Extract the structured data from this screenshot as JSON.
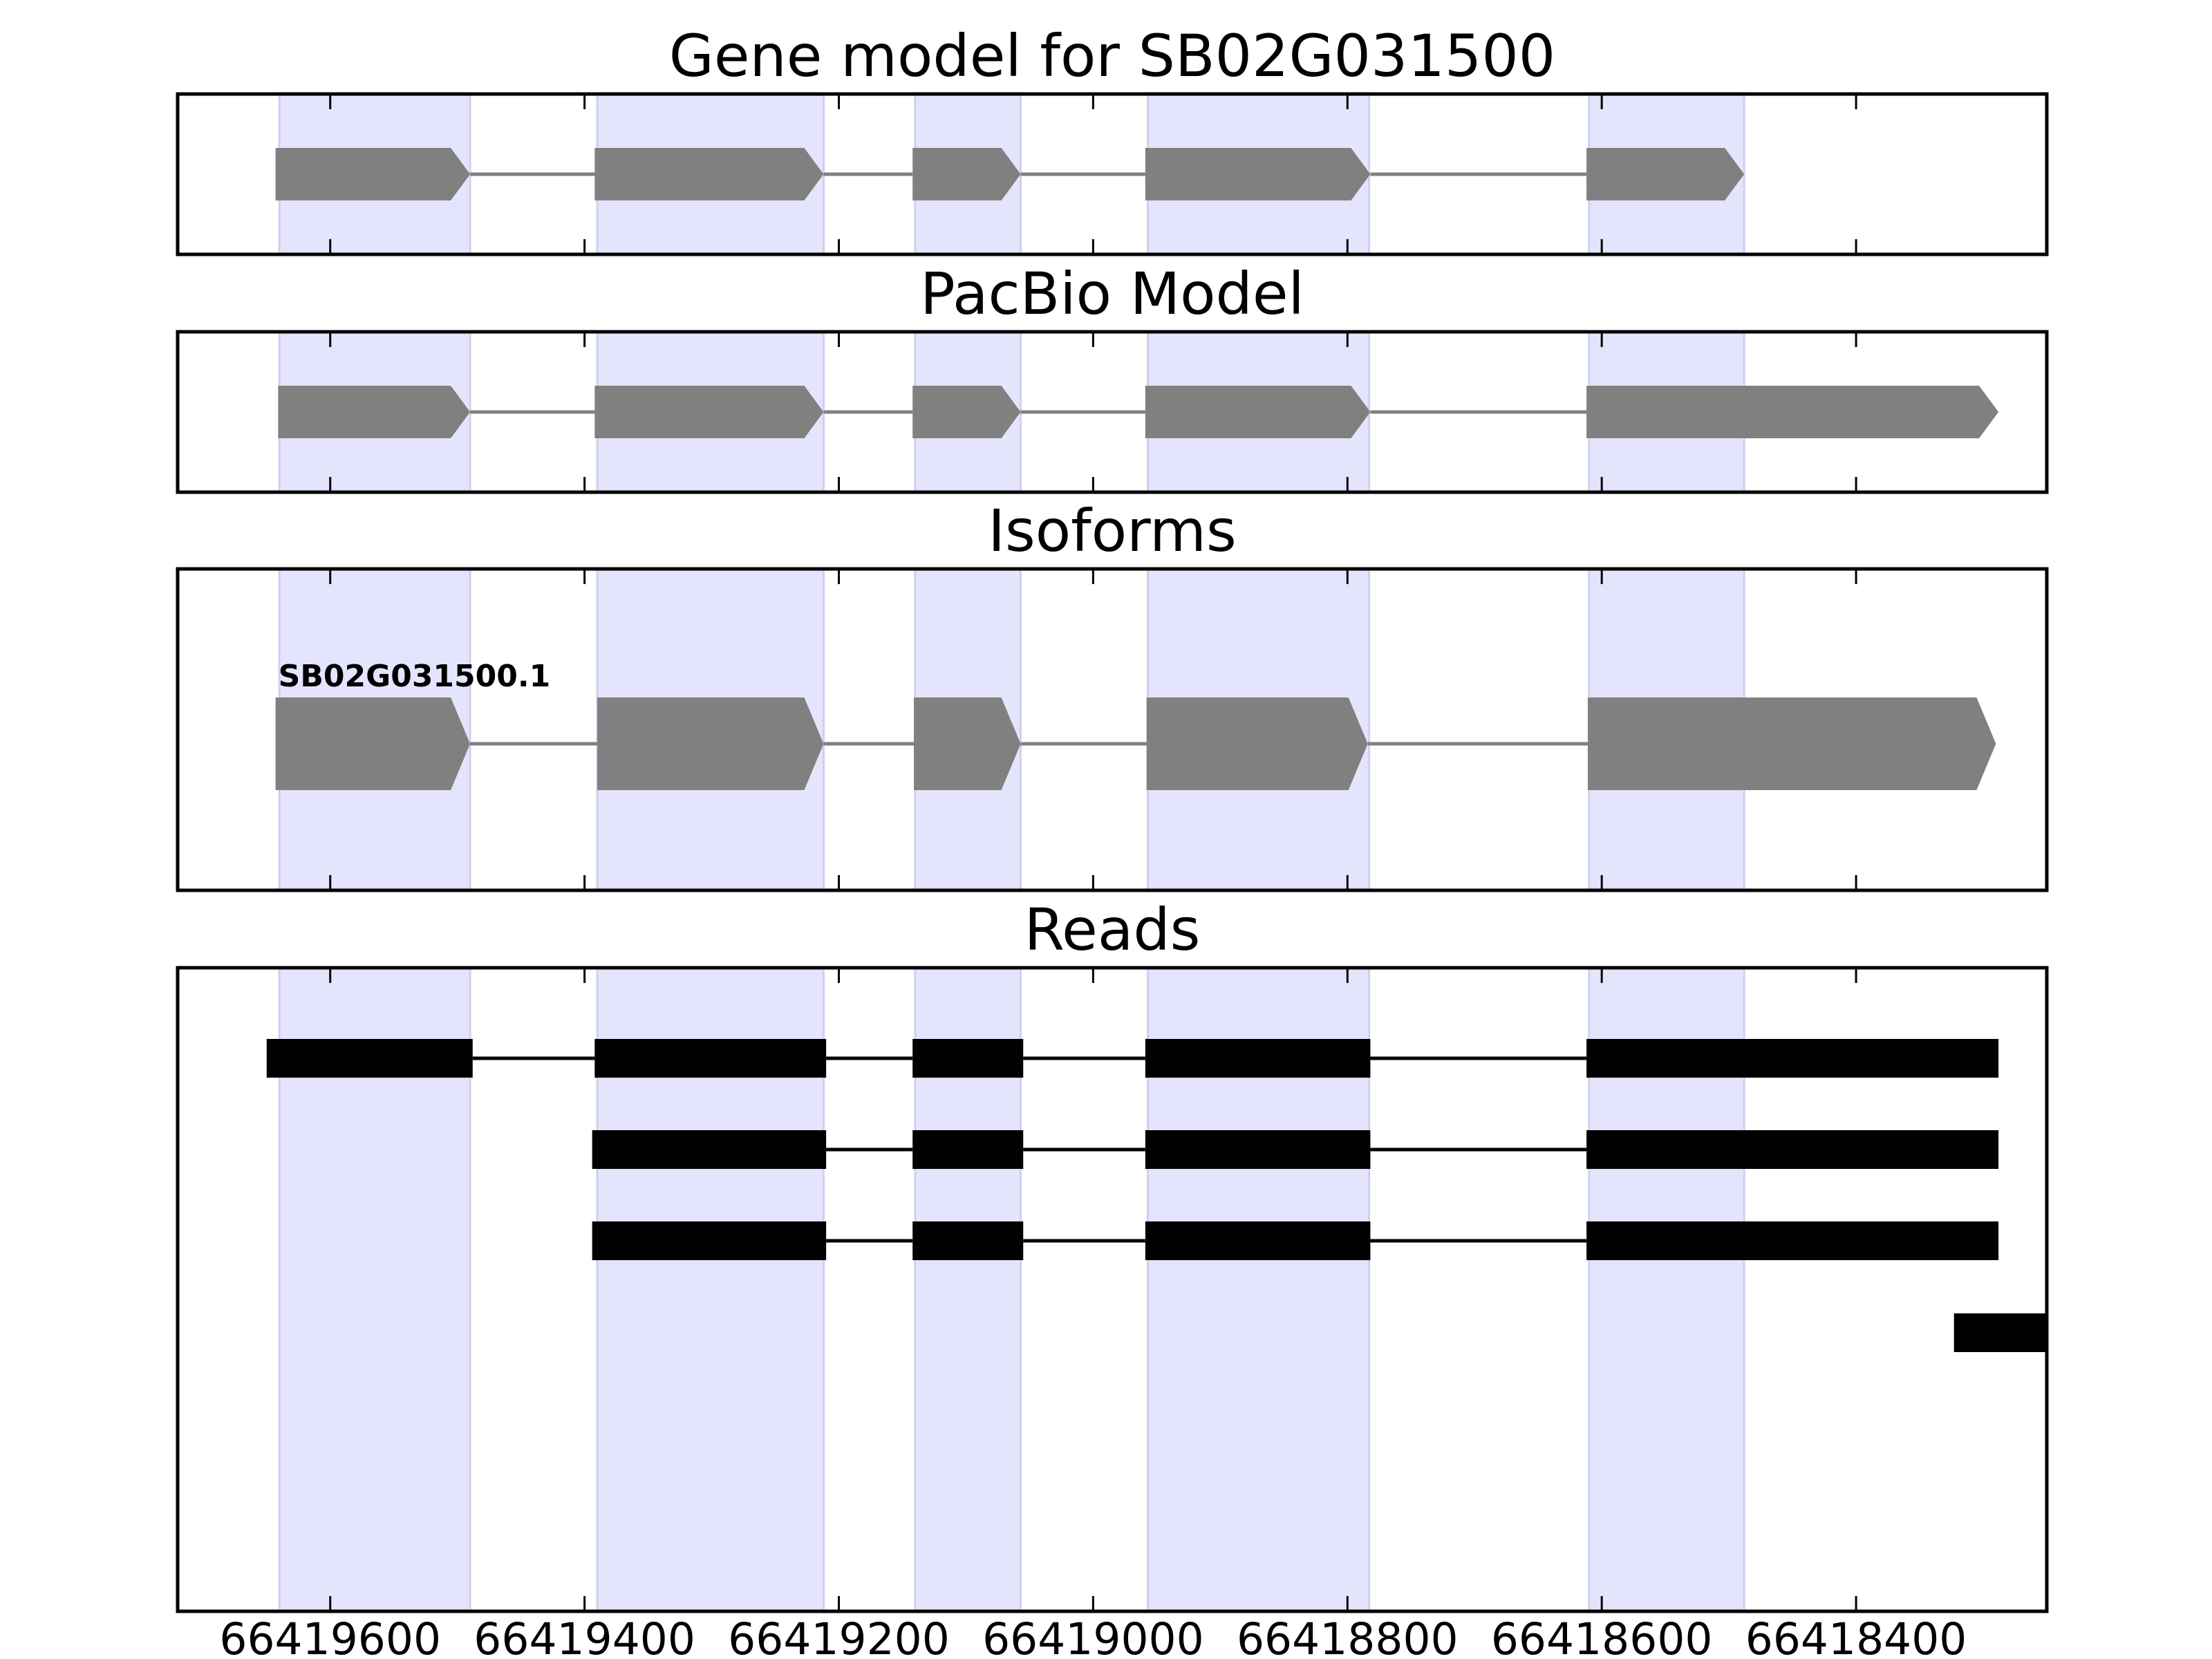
{
  "figure": {
    "x_tick_values": [
      66419600,
      66419400,
      66419200,
      66419000,
      66418800,
      66418600,
      66418400
    ],
    "x_tick_labels": [
      "66419600",
      "66419400",
      "66419200",
      "66419000",
      "66418800",
      "66418600",
      "66418400"
    ],
    "colors": {
      "exon_highlight": "#e4e4fc",
      "highlight_edge": "#cfd0ef",
      "gene_feature": "#808080",
      "read": "#000000",
      "frame": "#000000"
    }
  },
  "exon_regions": [
    [
      66419640,
      66419490
    ],
    [
      66419390,
      66419212
    ],
    [
      66419140,
      66419057
    ],
    [
      66418957,
      66418783
    ],
    [
      66418610,
      66418488
    ]
  ],
  "panels": [
    {
      "title": "Gene model for SB02G031500",
      "features": [
        {
          "exons": [
            [
              66419643,
              66419490
            ],
            [
              66419392,
              66419212
            ],
            [
              66419142,
              66419057
            ],
            [
              66418959,
              66418782
            ],
            [
              66418612,
              66418488
            ]
          ]
        }
      ]
    },
    {
      "title": "PacBio Model",
      "features": [
        {
          "exons": [
            [
              66419641,
              66419490
            ],
            [
              66419392,
              66419212
            ],
            [
              66419142,
              66419057
            ],
            [
              66418959,
              66418782
            ],
            [
              66418612,
              66418288
            ]
          ]
        }
      ]
    },
    {
      "title": "Isoforms",
      "features": [
        {
          "label": "SB02G031500.1",
          "exons": [
            [
              66419643,
              66419490
            ],
            [
              66419390,
              66419212
            ],
            [
              66419141,
              66419057
            ],
            [
              66418958,
              66418784
            ],
            [
              66418611,
              66418290
            ]
          ]
        }
      ]
    },
    {
      "title": "Reads",
      "features": [
        {
          "exons": [
            [
              66419650,
              66419488
            ],
            [
              66419392,
              66419210
            ],
            [
              66419142,
              66419055
            ],
            [
              66418959,
              66418782
            ],
            [
              66418612,
              66418288
            ]
          ]
        },
        {
          "exons": [
            [
              66419394,
              66419210
            ],
            [
              66419142,
              66419055
            ],
            [
              66418959,
              66418782
            ],
            [
              66418612,
              66418288
            ]
          ]
        },
        {
          "exons": [
            [
              66419394,
              66419210
            ],
            [
              66419142,
              66419055
            ],
            [
              66418959,
              66418782
            ],
            [
              66418612,
              66418288
            ]
          ]
        },
        {
          "exons": [
            [
              66418323,
              66418251
            ]
          ]
        }
      ]
    }
  ]
}
